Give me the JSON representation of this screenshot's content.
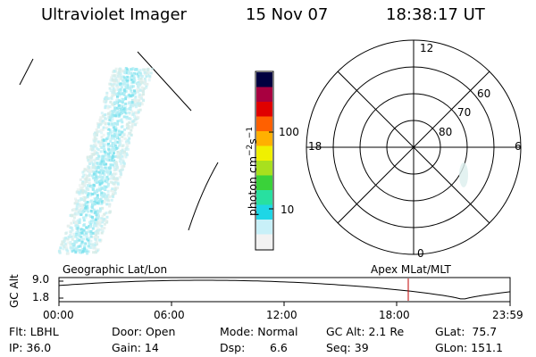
{
  "header": {
    "instrument": "Ultraviolet Imager",
    "date": "15 Nov 07",
    "time": "18:38:17 UT"
  },
  "colorbar": {
    "unit_label": "photon cm-2s-1",
    "unit_parts": {
      "base": "photon cm",
      "exp1": "−2",
      "s": "s",
      "exp2": "−1"
    },
    "tick_labels": [
      "100",
      "10"
    ],
    "colors_bottom_to_top": [
      "#f2f2f2",
      "#c8f0f8",
      "#1ed6e6",
      "#28e0a0",
      "#3ad23a",
      "#a8e01e",
      "#f0f000",
      "#ffb000",
      "#ff6000",
      "#e00000",
      "#a80040",
      "#000040"
    ]
  },
  "polar_plot": {
    "mlt_labels": {
      "top": "12",
      "left": "18",
      "right": "6",
      "bottom": "0"
    },
    "lat_labels": [
      "60",
      "70",
      "80"
    ]
  },
  "bottom_panel": {
    "left_title": "Geographic Lat/Lon",
    "right_title": "Apex MLat/MLT",
    "y_axis_title": "GC Alt",
    "y_ticks": [
      "9.0",
      "1.8"
    ],
    "x_ticks": [
      "00:00",
      "06:00",
      "12:00",
      "18:00",
      "23:59"
    ],
    "curve_color": "#000000",
    "marker_color": "#c00000",
    "marker_time": "18:38"
  },
  "status": {
    "flt": "Flt: LBHL",
    "door": "Door: Open",
    "mode": "Mode: Normal",
    "gc_alt": "GC Alt: 2.1 Re",
    "glat": "GLat:  75.7",
    "ip": "IP: 36.0",
    "gain": "Gain: 14",
    "dsp_label": "Dsp:",
    "dsp_value": "6.6",
    "seq": "Seq: 39",
    "glon": "GLon: 151.1"
  }
}
